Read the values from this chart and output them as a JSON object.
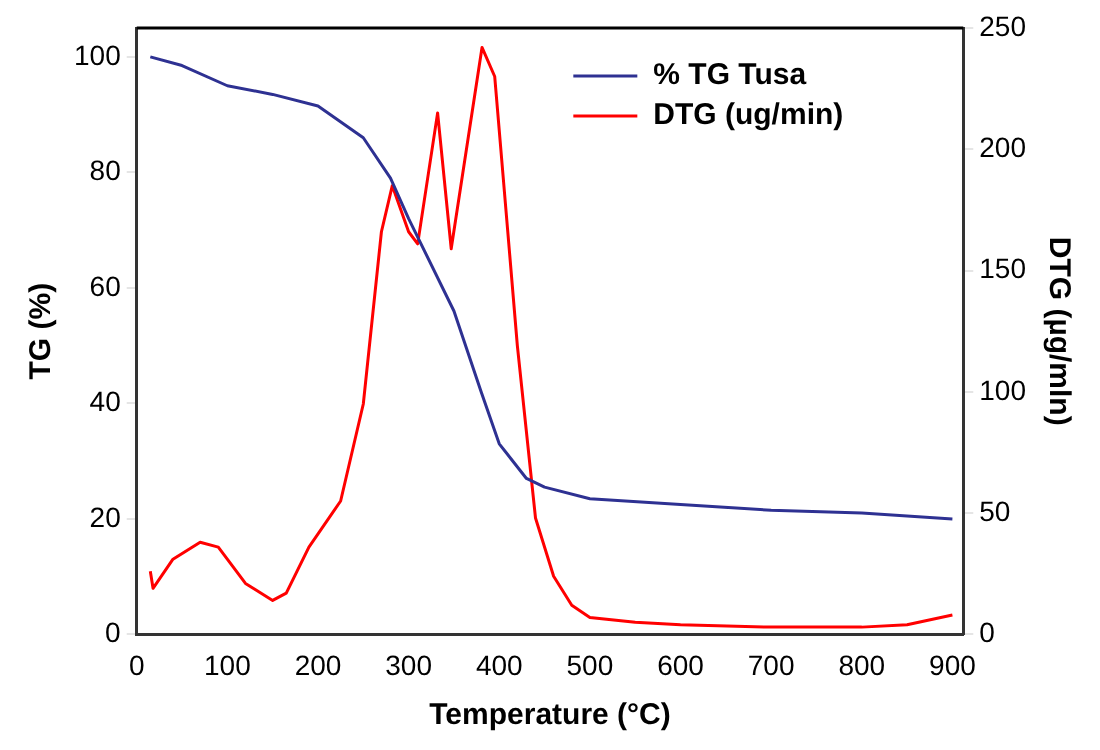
{
  "chart_data": {
    "type": "line",
    "xlabel": "Temperature (°C)",
    "ylabel": "TG (%)",
    "y2label": "DTG (µg/mln)",
    "xlim": [
      0,
      912
    ],
    "xticks": [
      0,
      100,
      200,
      300,
      400,
      500,
      600,
      700,
      800,
      900
    ],
    "ylim": [
      0,
      105
    ],
    "yticks": [
      0,
      20,
      40,
      60,
      80,
      100
    ],
    "y2lim": [
      0,
      250
    ],
    "y2ticks": [
      0,
      50,
      100,
      150,
      200,
      250
    ],
    "grid": false,
    "legend": "top right",
    "marker": "none",
    "line_style": "solid",
    "series": [
      {
        "name": "% TG Tusa",
        "color": "#2e3192",
        "x": [
          15,
          50,
          100,
          150,
          200,
          250,
          280,
          300,
          350,
          380,
          400,
          430,
          450,
          500,
          600,
          700,
          800,
          900
        ],
        "values": [
          100,
          98.5,
          95,
          93.5,
          91.5,
          86,
          79,
          72,
          56,
          42,
          33,
          27,
          25.5,
          23.5,
          22.5,
          21.5,
          21,
          20
        ]
      },
      {
        "name": "DTG (ug/min)",
        "color": "#ff0000",
        "axis": "y2",
        "x": [
          15,
          18,
          40,
          70,
          90,
          120,
          150,
          165,
          190,
          225,
          250,
          270,
          282,
          300,
          310,
          332,
          347,
          381,
          395,
          420,
          440,
          460,
          480,
          500,
          550,
          600,
          700,
          800,
          850,
          900
        ],
        "values": [
          26,
          19,
          31,
          38,
          36,
          21,
          14,
          17,
          36,
          55,
          95,
          166,
          185,
          166,
          161,
          215,
          159,
          242,
          230,
          119,
          48,
          24,
          12,
          7,
          5,
          4,
          3,
          3,
          4,
          8
        ]
      }
    ]
  }
}
